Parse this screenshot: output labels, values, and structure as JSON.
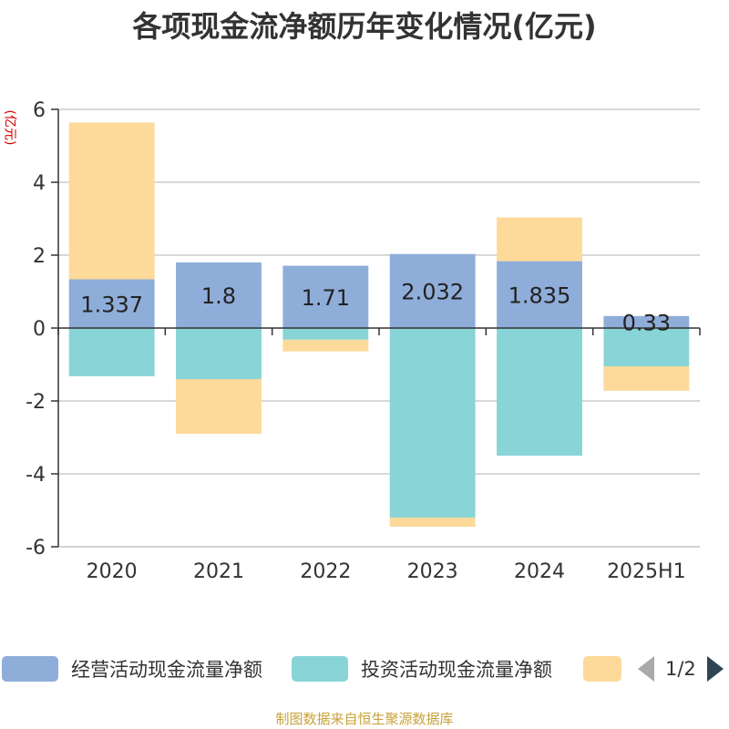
{
  "chart_data": {
    "type": "bar",
    "stacked": true,
    "title": "各项现金流净额历年变化情况(亿元)",
    "ylabel": "(亿元)",
    "ylim": [
      -6,
      6
    ],
    "yticks": [
      6,
      4,
      2,
      0,
      -2,
      -4,
      -6
    ],
    "categories": [
      "2020",
      "2021",
      "2022",
      "2023",
      "2024",
      "2025H1"
    ],
    "series": [
      {
        "name": "经营活动现金流量净额",
        "color": "#8fadd9",
        "values": [
          1.337,
          1.8,
          1.71,
          2.032,
          1.835,
          0.33
        ],
        "show_labels": true
      },
      {
        "name": "投资活动现金流量净额",
        "color": "#88d4d6",
        "values": [
          -1.32,
          -1.4,
          -0.32,
          -5.2,
          -3.5,
          -1.05
        ],
        "show_labels": false
      },
      {
        "name": "",
        "color": "#fdd99a",
        "values": [
          4.3,
          -1.5,
          -0.32,
          -0.25,
          1.2,
          -0.67
        ],
        "show_labels": false
      }
    ],
    "grid": true,
    "legend_position": "bottom"
  },
  "legend": {
    "page_indicator": "1/2"
  },
  "source": "制图数据来自恒生聚源数据库"
}
